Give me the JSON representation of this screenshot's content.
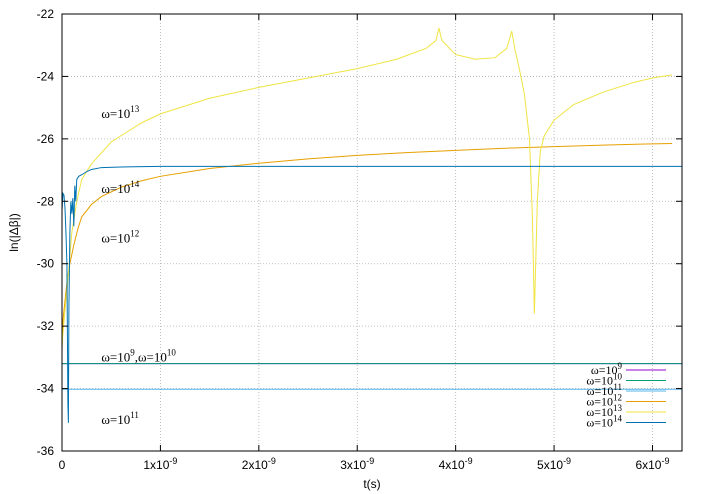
{
  "chart_data": {
    "type": "line",
    "xlabel": "t(s)",
    "ylabel": "ln(|Δβ|)",
    "xlim": [
      0,
      6.3e-09
    ],
    "ylim": [
      -36,
      -22
    ],
    "grid": true,
    "legend_position": "bottom-right",
    "x_ticks": [
      {
        "value": 0,
        "label": "0",
        "exp": ""
      },
      {
        "value": 1e-09,
        "label": "1x10",
        "exp": "-9"
      },
      {
        "value": 2e-09,
        "label": "2x10",
        "exp": "-9"
      },
      {
        "value": 3e-09,
        "label": "3x10",
        "exp": "-9"
      },
      {
        "value": 4e-09,
        "label": "4x10",
        "exp": "-9"
      },
      {
        "value": 5e-09,
        "label": "5x10",
        "exp": "-9"
      },
      {
        "value": 6e-09,
        "label": "6x10",
        "exp": "-9"
      }
    ],
    "y_ticks": [
      {
        "value": -36,
        "label": "-36"
      },
      {
        "value": -34,
        "label": "-34"
      },
      {
        "value": -32,
        "label": "-32"
      },
      {
        "value": -30,
        "label": "-30"
      },
      {
        "value": -28,
        "label": "-28"
      },
      {
        "value": -26,
        "label": "-26"
      },
      {
        "value": -24,
        "label": "-24"
      },
      {
        "value": -22,
        "label": "-22"
      }
    ],
    "series": [
      {
        "name": "ω=10",
        "exp": "9",
        "color": "#9400d3",
        "points": [
          [
            0,
            -33.2
          ],
          [
            6.3e-09,
            -33.2
          ]
        ]
      },
      {
        "name": "ω=10",
        "exp": "10",
        "color": "#009e73",
        "points": [
          [
            0,
            -33.2
          ],
          [
            6.3e-09,
            -33.2
          ]
        ]
      },
      {
        "name": "ω=10",
        "exp": "11",
        "color": "#56b4e9",
        "points": [
          [
            0,
            -34.02
          ],
          [
            6.3e-09,
            -34.02
          ]
        ]
      },
      {
        "name": "ω=10",
        "exp": "12",
        "color": "#e69f00",
        "points": [
          [
            0,
            -32.8
          ],
          [
            1e-11,
            -31.8
          ],
          [
            3e-11,
            -31.2
          ],
          [
            5e-11,
            -30.6
          ],
          [
            8e-11,
            -30.0
          ],
          [
            1.2e-10,
            -29.4
          ],
          [
            1.6e-10,
            -28.9
          ],
          [
            2e-10,
            -28.5
          ],
          [
            3e-10,
            -28.1
          ],
          [
            4e-10,
            -27.85
          ],
          [
            6e-10,
            -27.55
          ],
          [
            8e-10,
            -27.35
          ],
          [
            1e-09,
            -27.2
          ],
          [
            1.5e-09,
            -26.95
          ],
          [
            2e-09,
            -26.78
          ],
          [
            2.5e-09,
            -26.64
          ],
          [
            3e-09,
            -26.53
          ],
          [
            3.5e-09,
            -26.44
          ],
          [
            4e-09,
            -26.37
          ],
          [
            4.5e-09,
            -26.3
          ],
          [
            5e-09,
            -26.25
          ],
          [
            5.5e-09,
            -26.2
          ],
          [
            6e-09,
            -26.16
          ],
          [
            6.2e-09,
            -26.15
          ]
        ]
      },
      {
        "name": "ω=10",
        "exp": "13",
        "color": "#f0e442",
        "points": [
          [
            0,
            -32.6
          ],
          [
            3e-11,
            -31.5
          ],
          [
            6e-11,
            -30.5
          ],
          [
            1e-10,
            -29.0
          ],
          [
            1.5e-10,
            -28.0
          ],
          [
            2e-10,
            -27.3
          ],
          [
            3e-10,
            -26.8
          ],
          [
            5e-10,
            -26.1
          ],
          [
            8e-10,
            -25.5
          ],
          [
            1e-09,
            -25.2
          ],
          [
            1.5e-09,
            -24.7
          ],
          [
            2e-09,
            -24.35
          ],
          [
            2.5e-09,
            -24.05
          ],
          [
            3e-09,
            -23.75
          ],
          [
            3.4e-09,
            -23.45
          ],
          [
            3.7e-09,
            -23.1
          ],
          [
            3.8e-09,
            -22.85
          ],
          [
            3.83e-09,
            -22.45
          ],
          [
            3.86e-09,
            -22.85
          ],
          [
            4e-09,
            -23.3
          ],
          [
            4.2e-09,
            -23.45
          ],
          [
            4.4e-09,
            -23.4
          ],
          [
            4.52e-09,
            -23.1
          ],
          [
            4.57e-09,
            -22.55
          ],
          [
            4.6e-09,
            -23.1
          ],
          [
            4.65e-09,
            -23.8
          ],
          [
            4.7e-09,
            -24.6
          ],
          [
            4.75e-09,
            -26.0
          ],
          [
            4.78e-09,
            -28.5
          ],
          [
            4.8e-09,
            -31.6
          ],
          [
            4.83e-09,
            -28.0
          ],
          [
            4.86e-09,
            -26.4
          ],
          [
            4.9e-09,
            -25.9
          ],
          [
            5e-09,
            -25.4
          ],
          [
            5.2e-09,
            -24.9
          ],
          [
            5.5e-09,
            -24.5
          ],
          [
            5.8e-09,
            -24.2
          ],
          [
            6e-09,
            -24.05
          ],
          [
            6.2e-09,
            -23.95
          ]
        ]
      },
      {
        "name": "ω=10",
        "exp": "14",
        "color": "#0072b2",
        "points": [
          [
            0,
            -28.3
          ],
          [
            1e-11,
            -27.75
          ],
          [
            2e-11,
            -27.8
          ],
          [
            3e-11,
            -28.2
          ],
          [
            4e-11,
            -29.0
          ],
          [
            5e-11,
            -30.0
          ],
          [
            6e-11,
            -34.5
          ],
          [
            6.5e-11,
            -35.1
          ],
          [
            7e-11,
            -31.5
          ],
          [
            8e-11,
            -29.0
          ],
          [
            9e-11,
            -28.0
          ],
          [
            1e-10,
            -28.4
          ],
          [
            1.1e-10,
            -27.9
          ],
          [
            1.2e-10,
            -28.8
          ],
          [
            1.3e-10,
            -27.5
          ],
          [
            1.4e-10,
            -28.0
          ],
          [
            1.5e-10,
            -27.3
          ],
          [
            1.7e-10,
            -27.2
          ],
          [
            2e-10,
            -27.15
          ],
          [
            2.5e-10,
            -27.05
          ],
          [
            3e-10,
            -26.98
          ],
          [
            4e-10,
            -26.92
          ],
          [
            6e-10,
            -26.9
          ],
          [
            1e-09,
            -26.88
          ],
          [
            6.3e-09,
            -26.88
          ]
        ]
      }
    ],
    "annotations": [
      {
        "text": "ω=10",
        "exp": "13",
        "x": 4e-10,
        "y": -25.2
      },
      {
        "text": "ω=10",
        "exp": "14",
        "x": 4e-10,
        "y": -27.6
      },
      {
        "text": "ω=10",
        "exp": "12",
        "x": 4e-10,
        "y": -29.2
      },
      {
        "text": "ω=10",
        "exp": "9",
        "extra": ",ω=10",
        "exp2": "10",
        "x": 4e-10,
        "y": -33.0
      },
      {
        "text": "ω=10",
        "exp": "11",
        "x": 4e-10,
        "y": -35.0
      }
    ]
  }
}
